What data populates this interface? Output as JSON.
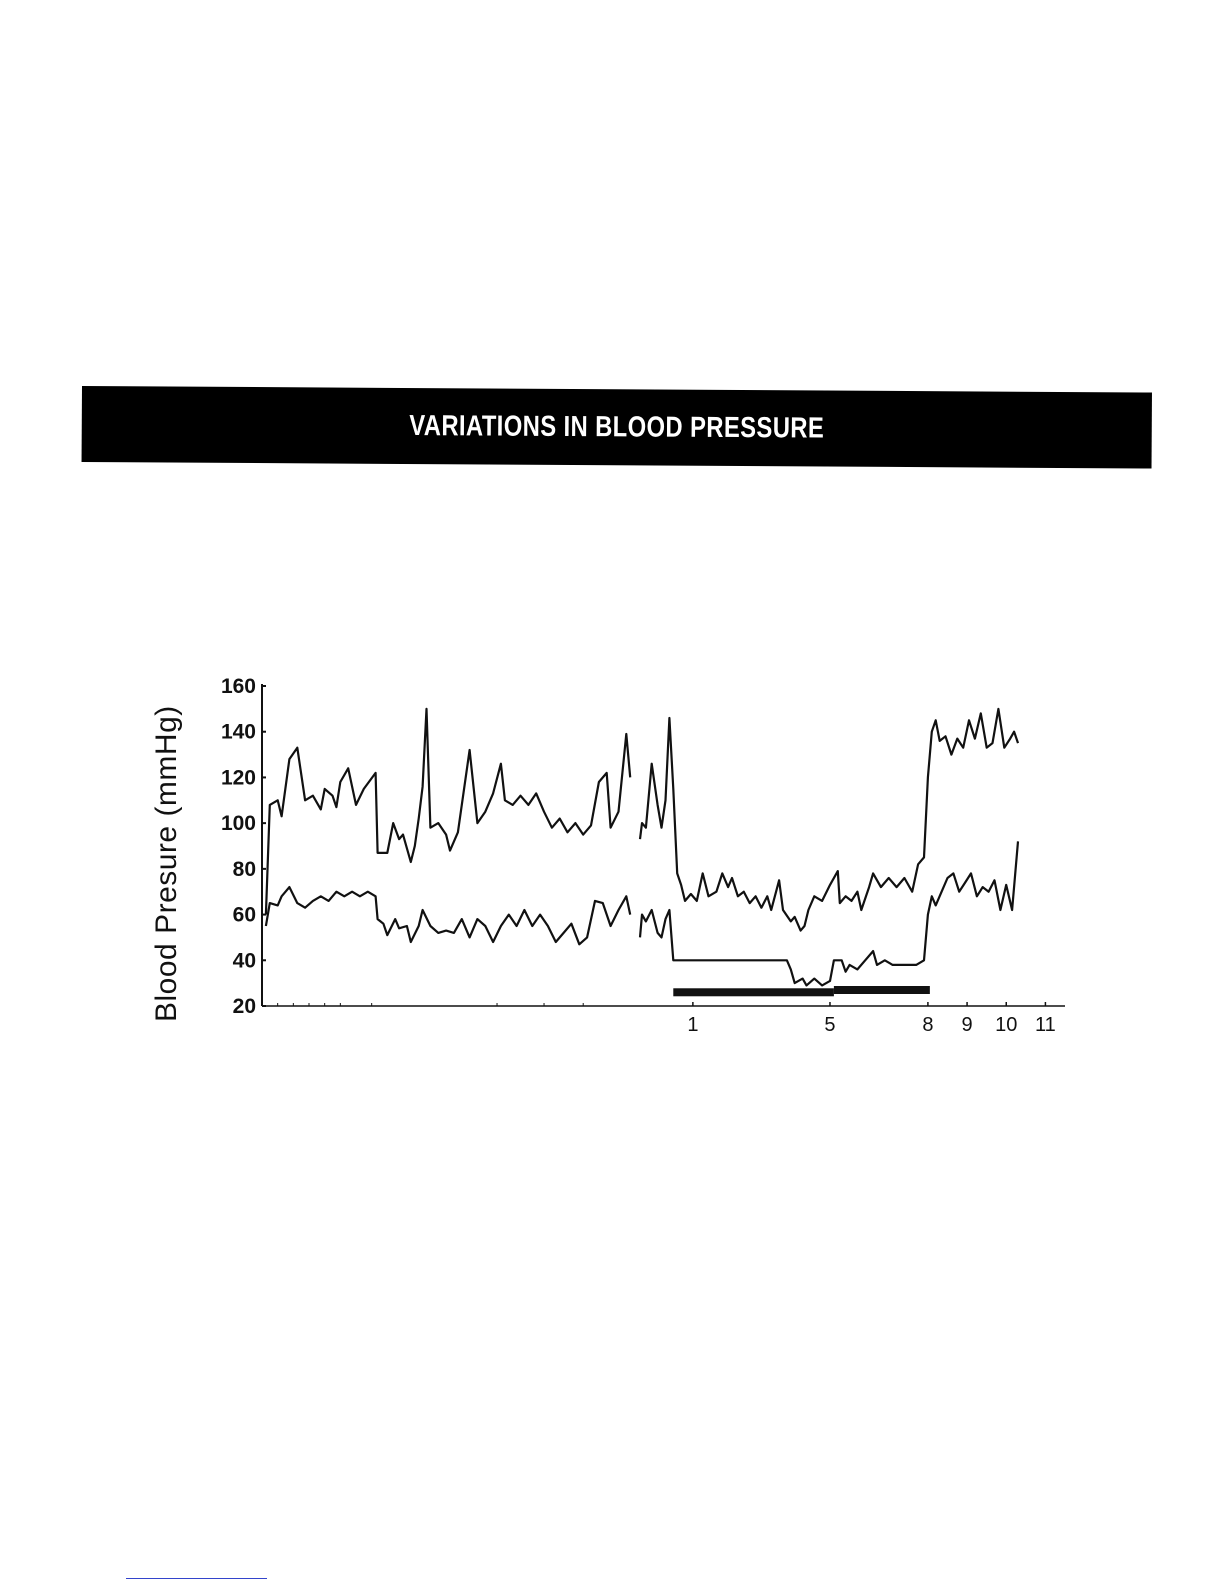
{
  "header": {
    "title": "VARIATIONS IN BLOOD PRESSURE"
  },
  "chart_data": {
    "type": "line",
    "title": "",
    "ylabel": "Blood Presure (mmHg)",
    "xlabel": "",
    "ylim": [
      20,
      160
    ],
    "y_ticks": [
      20,
      40,
      60,
      80,
      100,
      120,
      140,
      160
    ],
    "x_ticks": [
      {
        "label": "1",
        "x": 29
      },
      {
        "label": "5",
        "x": 32.5
      },
      {
        "label": "8",
        "x": 35
      },
      {
        "label": "9",
        "x": 36
      },
      {
        "label": "10",
        "x": 37
      },
      {
        "label": "11",
        "x": 38
      }
    ],
    "xlim": [
      18,
      38.5
    ],
    "grid": false,
    "legend": "none",
    "line_color": "#111111",
    "series": [
      {
        "name": "",
        "segments": [
          [
            [
              18.1,
              60
            ],
            [
              18.2,
              108
            ],
            [
              18.4,
              110
            ],
            [
              18.5,
              103
            ],
            [
              18.7,
              128
            ],
            [
              18.9,
              133
            ],
            [
              19.1,
              110
            ],
            [
              19.3,
              112
            ],
            [
              19.5,
              106
            ],
            [
              19.6,
              115
            ],
            [
              19.8,
              112
            ],
            [
              19.9,
              107
            ],
            [
              20.0,
              118
            ],
            [
              20.2,
              124
            ],
            [
              20.4,
              108
            ],
            [
              20.6,
              115
            ],
            [
              20.9,
              122
            ],
            [
              20.95,
              87
            ],
            [
              21.2,
              87
            ],
            [
              21.35,
              100
            ],
            [
              21.5,
              93
            ],
            [
              21.6,
              95
            ],
            [
              21.8,
              83
            ],
            [
              21.9,
              90
            ],
            [
              22.0,
              102
            ],
            [
              22.1,
              116
            ],
            [
              22.2,
              150
            ],
            [
              22.3,
              98
            ],
            [
              22.5,
              100
            ],
            [
              22.7,
              95
            ],
            [
              22.8,
              88
            ],
            [
              23.0,
              96
            ],
            [
              23.1,
              108
            ],
            [
              23.3,
              132
            ],
            [
              23.5,
              100
            ],
            [
              23.7,
              105
            ],
            [
              23.9,
              113
            ],
            [
              24.1,
              126
            ],
            [
              24.2,
              110
            ],
            [
              24.4,
              108
            ],
            [
              24.6,
              112
            ],
            [
              24.8,
              108
            ],
            [
              25.0,
              113
            ],
            [
              25.2,
              105
            ],
            [
              25.4,
              98
            ],
            [
              25.6,
              102
            ],
            [
              25.8,
              96
            ],
            [
              26.0,
              100
            ],
            [
              26.2,
              95
            ],
            [
              26.4,
              99
            ],
            [
              26.6,
              118
            ],
            [
              26.8,
              122
            ],
            [
              26.9,
              98
            ],
            [
              27.1,
              105
            ],
            [
              27.3,
              139
            ],
            [
              27.4,
              120
            ]
          ],
          [
            [
              27.65,
              93
            ],
            [
              27.7,
              100
            ],
            [
              27.8,
              98
            ],
            [
              27.95,
              126
            ],
            [
              28.1,
              108
            ],
            [
              28.2,
              98
            ],
            [
              28.3,
              110
            ],
            [
              28.4,
              146
            ],
            [
              28.5,
              115
            ],
            [
              28.6,
              78
            ],
            [
              28.7,
              73
            ],
            [
              28.8,
              66
            ],
            [
              28.95,
              69
            ],
            [
              29.1,
              66
            ],
            [
              29.25,
              78
            ],
            [
              29.4,
              68
            ],
            [
              29.6,
              70
            ],
            [
              29.75,
              78
            ],
            [
              29.9,
              72
            ],
            [
              30.0,
              76
            ],
            [
              30.15,
              68
            ],
            [
              30.3,
              70
            ],
            [
              30.45,
              65
            ],
            [
              30.6,
              68
            ],
            [
              30.75,
              63
            ],
            [
              30.9,
              68
            ],
            [
              31.0,
              62
            ],
            [
              31.2,
              75
            ],
            [
              31.3,
              62
            ],
            [
              31.5,
              57
            ],
            [
              31.6,
              59
            ],
            [
              31.75,
              53
            ],
            [
              31.85,
              55
            ],
            [
              31.95,
              62
            ],
            [
              32.1,
              68
            ],
            [
              32.3,
              66
            ],
            [
              32.5,
              73
            ],
            [
              32.7,
              79
            ],
            [
              32.75,
              65
            ],
            [
              32.9,
              68
            ],
            [
              33.05,
              66
            ],
            [
              33.2,
              70
            ],
            [
              33.3,
              62
            ],
            [
              33.5,
              72
            ],
            [
              33.6,
              78
            ],
            [
              33.8,
              72
            ],
            [
              34.0,
              76
            ],
            [
              34.2,
              72
            ],
            [
              34.4,
              76
            ],
            [
              34.6,
              70
            ],
            [
              34.75,
              82
            ],
            [
              34.9,
              85
            ],
            [
              35.0,
              120
            ],
            [
              35.1,
              140
            ],
            [
              35.2,
              145
            ],
            [
              35.3,
              136
            ],
            [
              35.45,
              138
            ],
            [
              35.6,
              130
            ],
            [
              35.75,
              137
            ],
            [
              35.9,
              133
            ],
            [
              36.05,
              145
            ],
            [
              36.2,
              137
            ],
            [
              36.35,
              148
            ],
            [
              36.5,
              133
            ],
            [
              36.65,
              135
            ],
            [
              36.8,
              150
            ],
            [
              36.95,
              133
            ],
            [
              37.1,
              137
            ],
            [
              37.2,
              140
            ],
            [
              37.3,
              135
            ]
          ]
        ]
      },
      {
        "name": "",
        "segments": [
          [
            [
              18.1,
              55
            ],
            [
              18.2,
              65
            ],
            [
              18.4,
              64
            ],
            [
              18.5,
              68
            ],
            [
              18.7,
              72
            ],
            [
              18.9,
              65
            ],
            [
              19.1,
              63
            ],
            [
              19.3,
              66
            ],
            [
              19.5,
              68
            ],
            [
              19.7,
              66
            ],
            [
              19.9,
              70
            ],
            [
              20.1,
              68
            ],
            [
              20.3,
              70
            ],
            [
              20.5,
              68
            ],
            [
              20.7,
              70
            ],
            [
              20.9,
              68
            ],
            [
              20.95,
              58
            ],
            [
              21.1,
              56
            ],
            [
              21.2,
              51
            ],
            [
              21.4,
              58
            ],
            [
              21.5,
              54
            ],
            [
              21.7,
              55
            ],
            [
              21.8,
              48
            ],
            [
              22.0,
              55
            ],
            [
              22.1,
              62
            ],
            [
              22.3,
              55
            ],
            [
              22.5,
              52
            ],
            [
              22.7,
              53
            ],
            [
              22.9,
              52
            ],
            [
              23.1,
              58
            ],
            [
              23.3,
              50
            ],
            [
              23.5,
              58
            ],
            [
              23.7,
              55
            ],
            [
              23.9,
              48
            ],
            [
              24.1,
              55
            ],
            [
              24.3,
              60
            ],
            [
              24.5,
              55
            ],
            [
              24.7,
              62
            ],
            [
              24.9,
              55
            ],
            [
              25.1,
              60
            ],
            [
              25.3,
              55
            ],
            [
              25.5,
              48
            ],
            [
              25.7,
              52
            ],
            [
              25.9,
              56
            ],
            [
              26.1,
              47
            ],
            [
              26.3,
              50
            ],
            [
              26.5,
              66
            ],
            [
              26.7,
              65
            ],
            [
              26.9,
              55
            ],
            [
              27.1,
              62
            ],
            [
              27.3,
              68
            ],
            [
              27.4,
              60
            ]
          ],
          [
            [
              27.65,
              50
            ],
            [
              27.7,
              60
            ],
            [
              27.8,
              57
            ],
            [
              27.95,
              62
            ],
            [
              28.1,
              52
            ],
            [
              28.2,
              50
            ],
            [
              28.3,
              58
            ],
            [
              28.4,
              62
            ],
            [
              28.5,
              40
            ],
            [
              29.0,
              40
            ],
            [
              29.5,
              40
            ],
            [
              30.0,
              40
            ],
            [
              30.5,
              40
            ],
            [
              31.0,
              40
            ],
            [
              31.4,
              40
            ],
            [
              31.5,
              36
            ],
            [
              31.6,
              30
            ],
            [
              31.8,
              32
            ],
            [
              31.9,
              29
            ],
            [
              32.1,
              32
            ],
            [
              32.3,
              29
            ],
            [
              32.5,
              31
            ],
            [
              32.6,
              40
            ],
            [
              32.8,
              40
            ],
            [
              32.9,
              35
            ],
            [
              33.0,
              38
            ],
            [
              33.2,
              36
            ],
            [
              33.4,
              40
            ],
            [
              33.6,
              44
            ],
            [
              33.7,
              38
            ],
            [
              33.9,
              40
            ],
            [
              34.1,
              38
            ],
            [
              34.3,
              38
            ],
            [
              34.5,
              38
            ],
            [
              34.7,
              38
            ],
            [
              34.9,
              40
            ],
            [
              35.0,
              60
            ],
            [
              35.1,
              68
            ],
            [
              35.2,
              64
            ],
            [
              35.35,
              70
            ],
            [
              35.5,
              76
            ],
            [
              35.65,
              78
            ],
            [
              35.8,
              70
            ],
            [
              35.95,
              74
            ],
            [
              36.1,
              78
            ],
            [
              36.25,
              68
            ],
            [
              36.4,
              72
            ],
            [
              36.55,
              70
            ],
            [
              36.7,
              75
            ],
            [
              36.85,
              62
            ],
            [
              37.0,
              73
            ],
            [
              37.15,
              62
            ],
            [
              37.3,
              92
            ]
          ]
        ]
      }
    ],
    "bars": [
      {
        "x0": 28.5,
        "x1": 32.6,
        "y": 26
      },
      {
        "x0": 32.6,
        "x1": 35.05,
        "y": 27
      }
    ]
  }
}
